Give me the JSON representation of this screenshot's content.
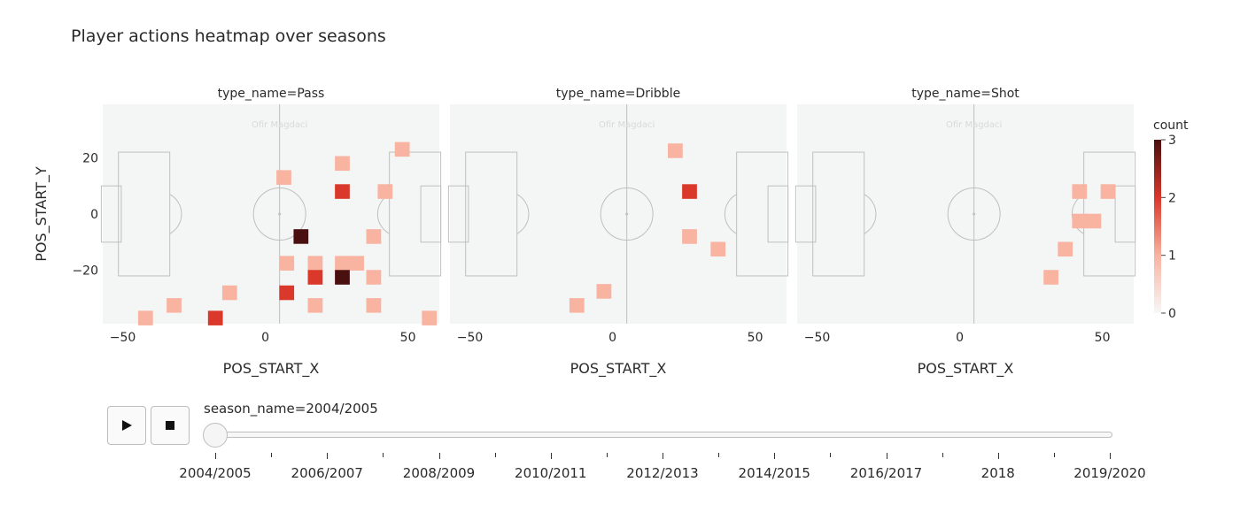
{
  "chart_data": {
    "type": "heatmap",
    "title": "Player actions heatmap over seasons",
    "xlabel": "POS_START_X",
    "ylabel": "POS_START_Y",
    "xlim": [
      -57,
      61
    ],
    "ylim": [
      -39,
      39
    ],
    "xticks": [
      -50,
      0,
      50
    ],
    "yticks": [
      20,
      0,
      -20
    ],
    "bin_size": 5.2,
    "watermark": "Ofir Magdaci",
    "colorbar": {
      "title": "count",
      "range": [
        0,
        3
      ],
      "ticks": [
        0,
        1,
        2,
        3
      ],
      "colorscale": [
        "#f7f7f7",
        "#f8b3a1",
        "#d9382a",
        "#4a0f0f"
      ]
    },
    "panels": [
      {
        "facet_label": "type_name=Pass",
        "cells": [
          {
            "x": 6.5,
            "y": 13,
            "v": 1
          },
          {
            "x": 27,
            "y": 18,
            "v": 1
          },
          {
            "x": 27,
            "y": 8,
            "v": 2
          },
          {
            "x": 42,
            "y": 8,
            "v": 1
          },
          {
            "x": 48,
            "y": 23,
            "v": 1
          },
          {
            "x": 12.5,
            "y": -8,
            "v": 3
          },
          {
            "x": 38,
            "y": -8,
            "v": 1
          },
          {
            "x": 7.5,
            "y": -17.5,
            "v": 1
          },
          {
            "x": 17.5,
            "y": -17.5,
            "v": 1
          },
          {
            "x": 27,
            "y": -17.5,
            "v": 1
          },
          {
            "x": 32,
            "y": -17.5,
            "v": 1
          },
          {
            "x": 17.5,
            "y": -22.5,
            "v": 2
          },
          {
            "x": 27,
            "y": -22.5,
            "v": 3
          },
          {
            "x": 38,
            "y": -22.5,
            "v": 1
          },
          {
            "x": 7.5,
            "y": -28,
            "v": 2
          },
          {
            "x": -12.5,
            "y": -28,
            "v": 1
          },
          {
            "x": -32,
            "y": -32.5,
            "v": 1
          },
          {
            "x": 17.5,
            "y": -32.5,
            "v": 1
          },
          {
            "x": 38,
            "y": -32.5,
            "v": 1
          },
          {
            "x": -42,
            "y": -37,
            "v": 1
          },
          {
            "x": -17.5,
            "y": -37,
            "v": 2
          },
          {
            "x": 57.5,
            "y": -37,
            "v": 1
          }
        ]
      },
      {
        "facet_label": "type_name=Dribble",
        "cells": [
          {
            "x": 22,
            "y": 22.5,
            "v": 1
          },
          {
            "x": 27,
            "y": 8,
            "v": 2
          },
          {
            "x": 27,
            "y": -8,
            "v": 1
          },
          {
            "x": 37,
            "y": -12.5,
            "v": 1
          },
          {
            "x": -3,
            "y": -27.5,
            "v": 1
          },
          {
            "x": -12.5,
            "y": -32.5,
            "v": 1
          }
        ]
      },
      {
        "facet_label": "type_name=Shot",
        "cells": [
          {
            "x": 42,
            "y": 8,
            "v": 1
          },
          {
            "x": 52,
            "y": 8,
            "v": 1
          },
          {
            "x": 42,
            "y": -2.5,
            "v": 1
          },
          {
            "x": 47,
            "y": -2.5,
            "v": 1
          },
          {
            "x": 37,
            "y": -12.5,
            "v": 1
          },
          {
            "x": 32,
            "y": -22.5,
            "v": 1
          }
        ]
      }
    ]
  },
  "animation": {
    "current_label": "season_name=2004/2005",
    "play_icon": "play-icon",
    "stop_icon": "stop-icon",
    "steps": [
      "2004/2005",
      "2006/2007",
      "2008/2009",
      "2010/2011",
      "2012/2013",
      "2014/2015",
      "2016/2017",
      "2018",
      "2019/2020"
    ]
  }
}
